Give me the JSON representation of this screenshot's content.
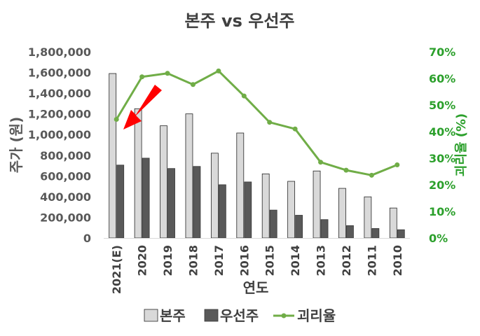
{
  "chart_data": {
    "type": "bar",
    "title": "본주 vs 우선주",
    "categories": [
      "2021(E)",
      "2020",
      "2019",
      "2018",
      "2017",
      "2016",
      "2015",
      "2014",
      "2013",
      "2012",
      "2011",
      "2010"
    ],
    "series": [
      {
        "name": "본주",
        "type": "bar",
        "axis": "left",
        "color": "#d9d9d9",
        "values": [
          1590000,
          1250000,
          1085000,
          1200000,
          820000,
          1015000,
          620000,
          548000,
          648000,
          480000,
          398000,
          290000
        ]
      },
      {
        "name": "우선주",
        "type": "bar",
        "axis": "left",
        "color": "#595959",
        "values": [
          705000,
          772000,
          672000,
          692000,
          515000,
          542000,
          270000,
          220000,
          178000,
          120000,
          92000,
          80000
        ]
      },
      {
        "name": "괴리율",
        "type": "line",
        "axis": "right",
        "color": "#70ad47",
        "values": [
          44.6,
          60.6,
          61.9,
          57.7,
          62.8,
          53.4,
          43.5,
          41.0,
          28.5,
          25.5,
          23.6,
          27.5
        ]
      }
    ],
    "xlabel": "연도",
    "ylabel_left": "주가 (원)",
    "ylabel_right": "괴리율 (%)",
    "ylim_left": [
      0,
      1800000
    ],
    "ylim_right": [
      0,
      70
    ],
    "yticks_left": [
      "0",
      "200,000",
      "400,000",
      "600,000",
      "800,000",
      "1,000,000",
      "1,200,000",
      "1,400,000",
      "1,600,000",
      "1,800,000"
    ],
    "yticks_right": [
      "0%",
      "10%",
      "20%",
      "30%",
      "40%",
      "50%",
      "60%",
      "70%"
    ],
    "grid": false,
    "legend_position": "bottom",
    "annotation": {
      "type": "red-arrow",
      "points_to": "2021(E)",
      "color": "#ff0000"
    }
  }
}
